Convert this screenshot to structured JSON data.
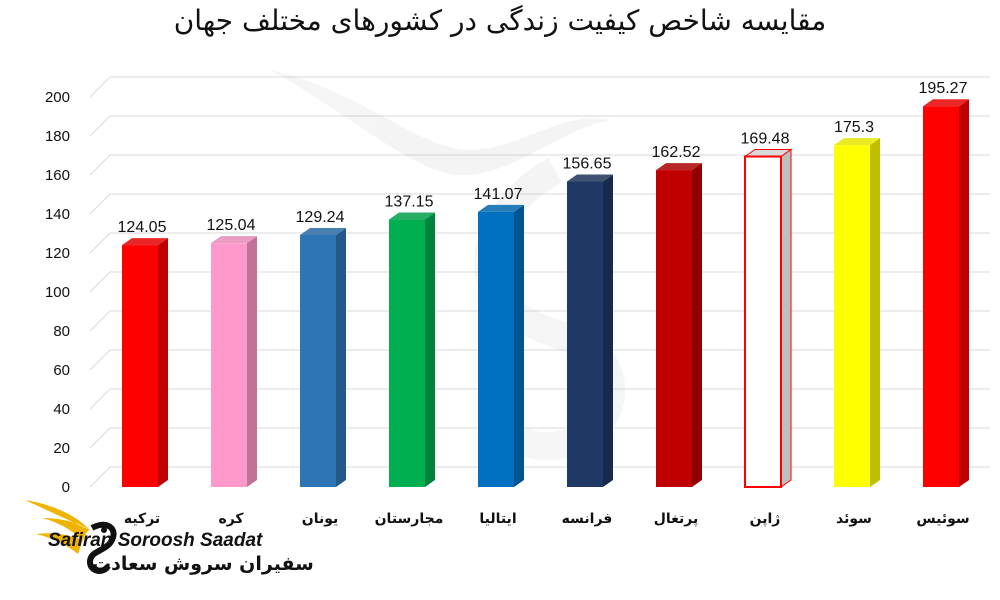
{
  "chart_data": {
    "type": "bar",
    "title": "مقایسه شاخص کیفیت زندگی در کشورهای مختلف جهان",
    "categories": [
      "ترکیه",
      "کره",
      "یونان",
      "مجارستان",
      "ایتالیا",
      "فرانسه",
      "پرتغال",
      "ژاپن",
      "سوئد",
      "سوئیس"
    ],
    "values": [
      124.05,
      125.04,
      129.24,
      137.15,
      141.07,
      156.65,
      162.52,
      169.48,
      175.3,
      195.27
    ],
    "value_labels": [
      "124.05",
      "125.04",
      "129.24",
      "137.15",
      "141.07",
      "156.65",
      "162.52",
      "169.48",
      "175.3",
      "195.27"
    ],
    "colors": [
      "#ff0000",
      "#ff99cc",
      "#2e75b6",
      "#00b050",
      "#0070c0",
      "#203864",
      "#c00000",
      "#ffffff",
      "#ffff00",
      "#ff0000"
    ],
    "outline_only": [
      false,
      false,
      false,
      false,
      false,
      false,
      false,
      true,
      false,
      false
    ],
    "ylim": [
      0,
      200
    ],
    "yticks": [
      "0",
      "20",
      "40",
      "60",
      "80",
      "100",
      "120",
      "140",
      "160",
      "180",
      "200"
    ],
    "grid": true,
    "xlabel": "",
    "ylabel": ""
  },
  "branding": {
    "name_en": "Safiran Soroosh Saadat",
    "name_fa": "سفیران سروش سعادت"
  }
}
